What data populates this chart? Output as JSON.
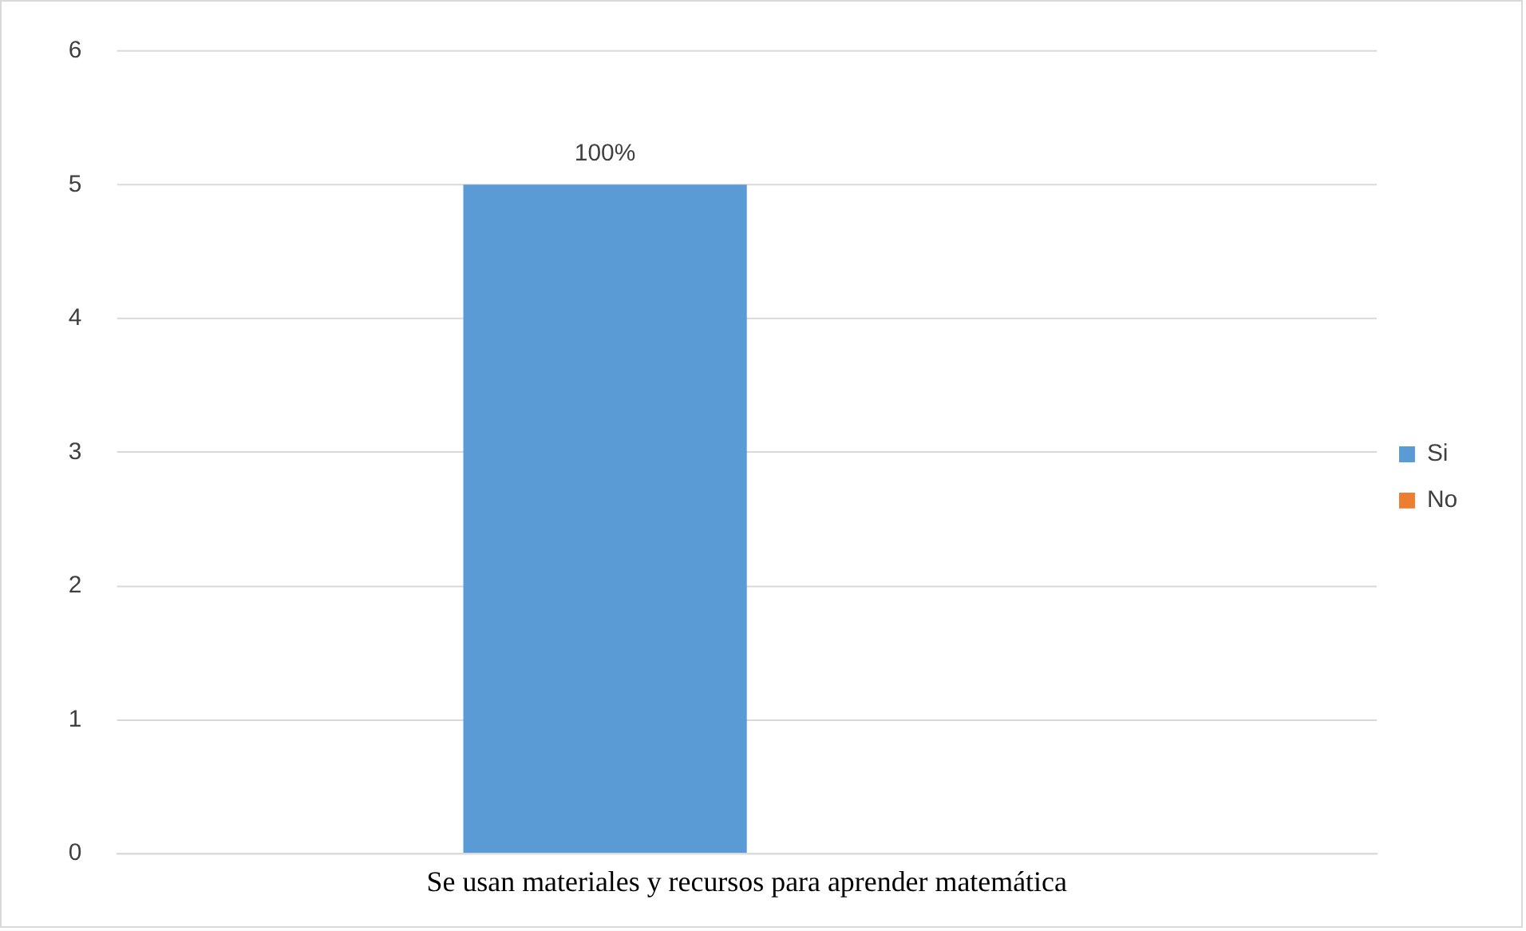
{
  "chart_data": {
    "type": "bar",
    "categories": [
      "Se usan materiales y recursos para aprender matemática"
    ],
    "series": [
      {
        "name": "Si",
        "color": "#5b9bd5",
        "values": [
          5
        ]
      },
      {
        "name": "No",
        "color": "#ed7d31",
        "values": [
          0
        ]
      }
    ],
    "annotations": [
      "100%"
    ],
    "ylim": [
      0,
      6
    ],
    "yticks": [
      0,
      1,
      2,
      3,
      4,
      5,
      6
    ],
    "grid": "y",
    "legend": "right"
  }
}
